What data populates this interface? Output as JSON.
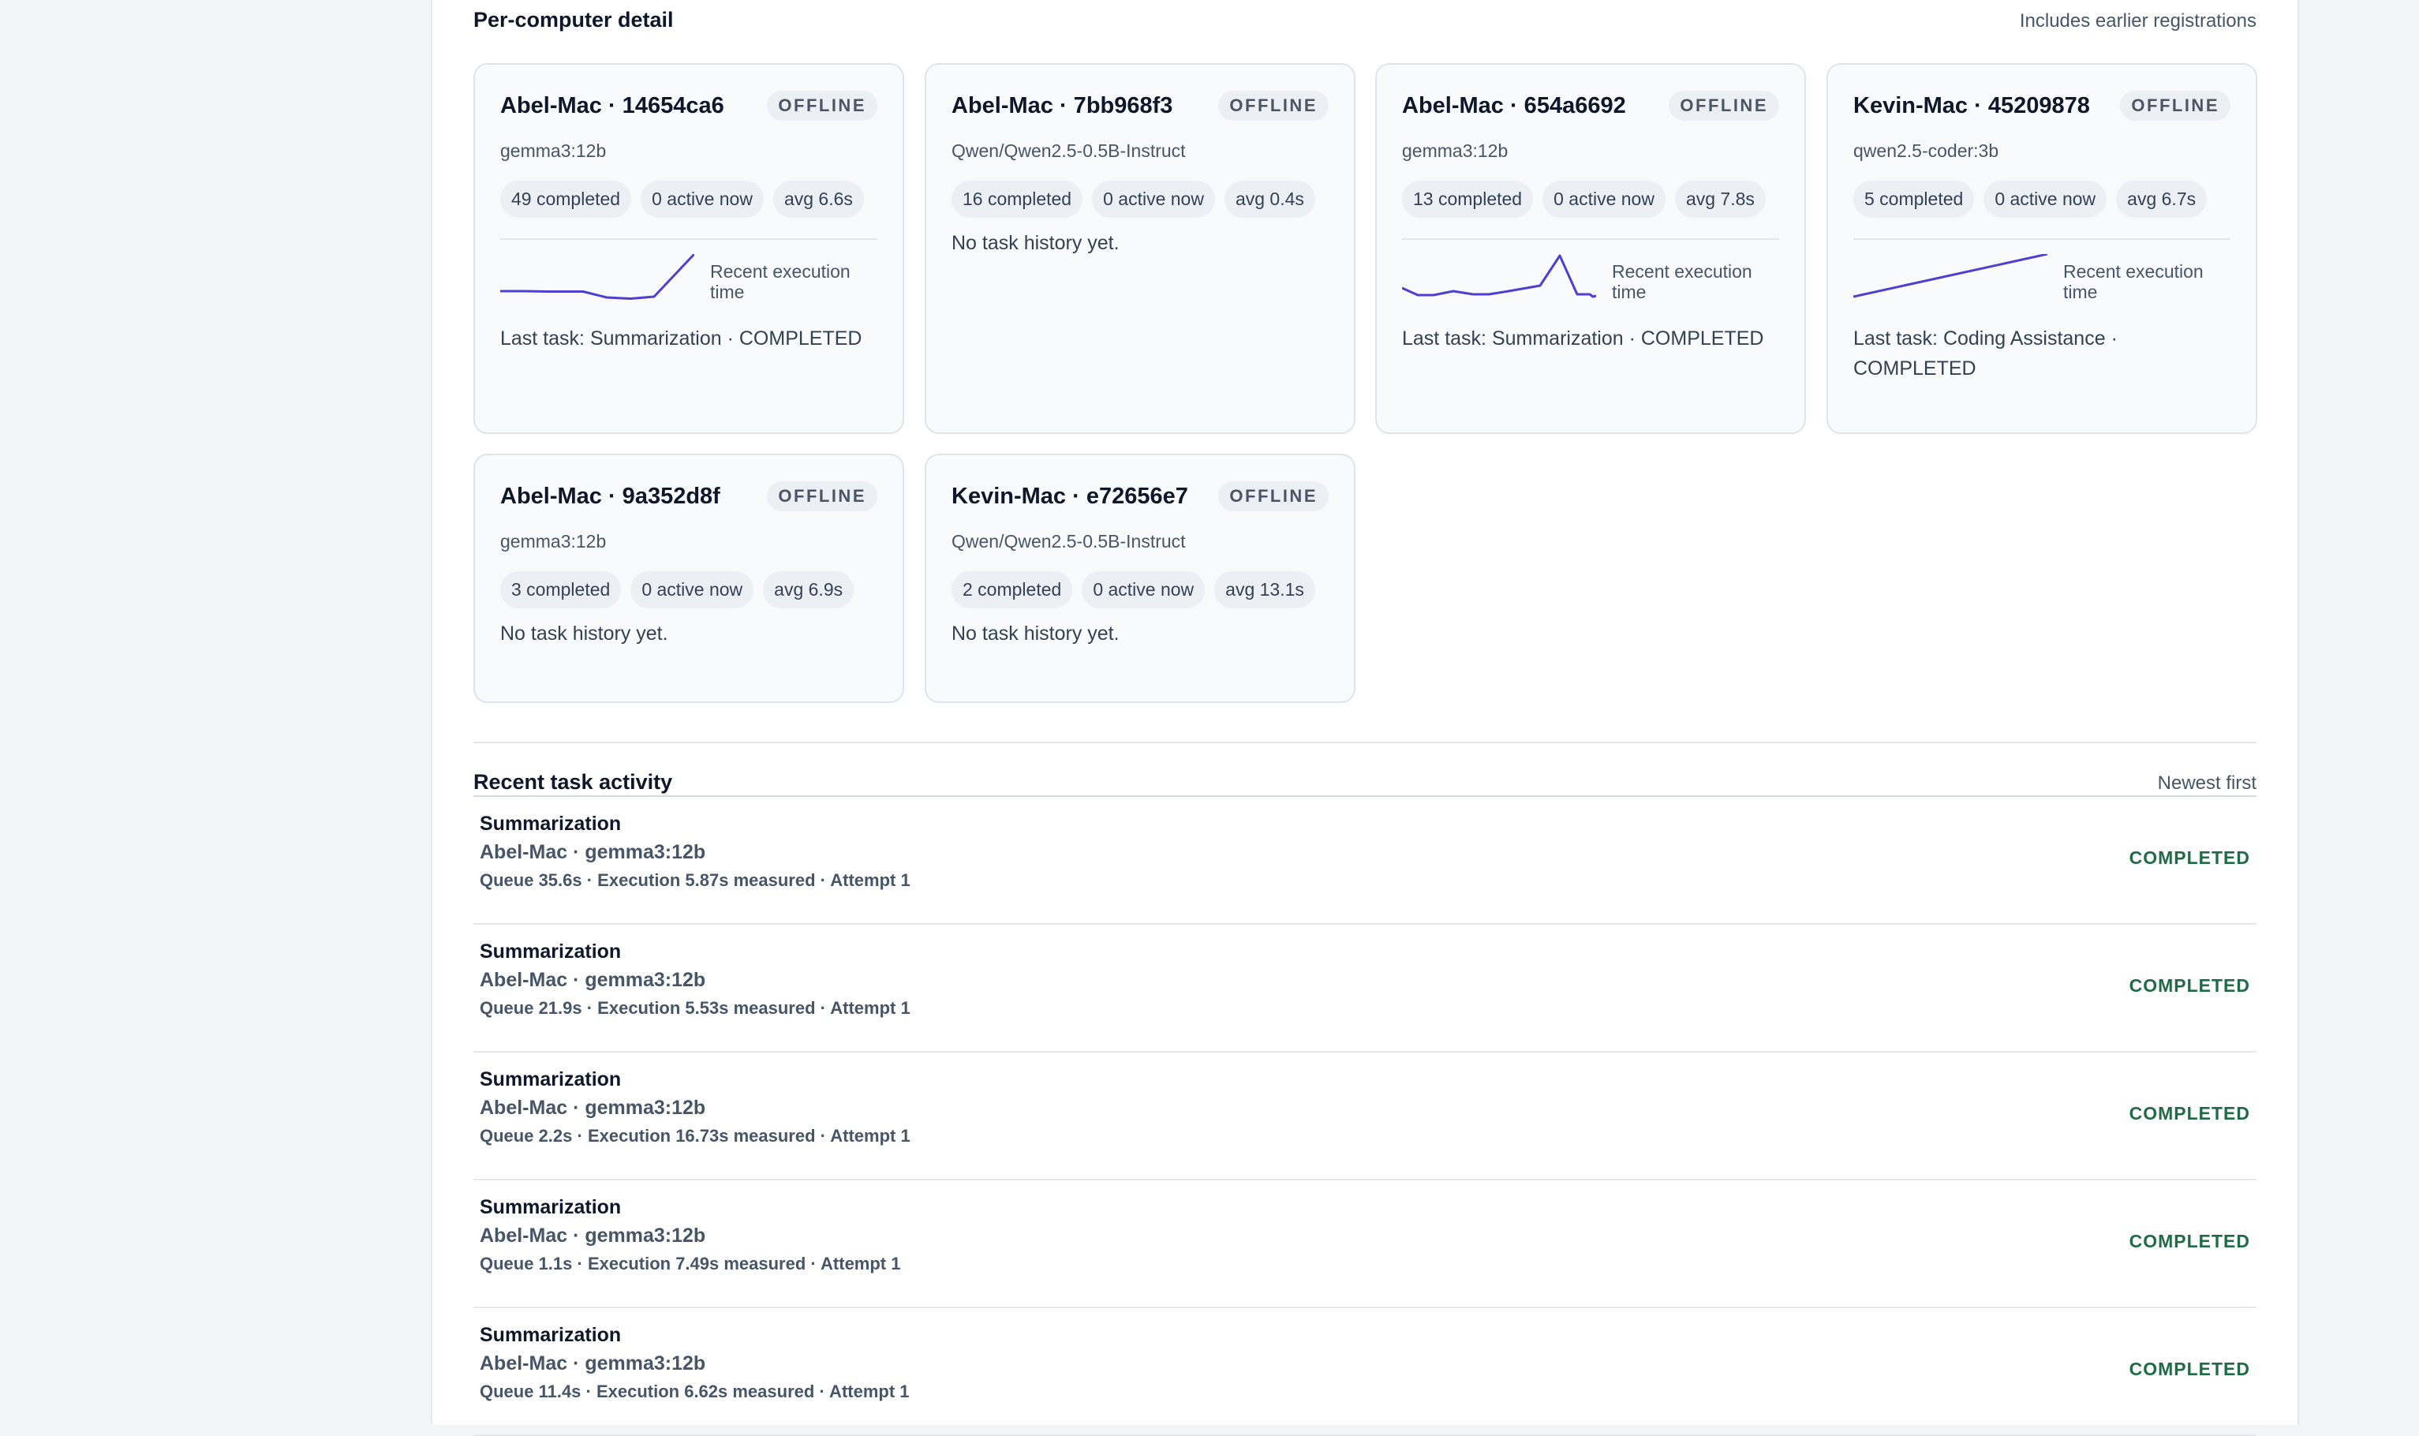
{
  "per_computer": {
    "title": "Per-computer detail",
    "note": "Includes earlier registrations",
    "cards": [
      {
        "name": "Abel-Mac · 14654ca6",
        "status": "OFFLINE",
        "model": "gemma3:12b",
        "completed": "49 completed",
        "active": "0 active now",
        "avg": "avg 6.6s",
        "spark_label": "Recent execution time",
        "last_task": "Last task: Summarization · COMPLETED"
      },
      {
        "name": "Abel-Mac · 7bb968f3",
        "status": "OFFLINE",
        "model": "Qwen/Qwen2.5-0.5B-Instruct",
        "completed": "16 completed",
        "active": "0 active now",
        "avg": "avg 0.4s",
        "no_history": "No task history yet."
      },
      {
        "name": "Abel-Mac · 654a6692",
        "status": "OFFLINE",
        "model": "gemma3:12b",
        "completed": "13 completed",
        "active": "0 active now",
        "avg": "avg 7.8s",
        "spark_label": "Recent execution time",
        "last_task": "Last task: Summarization · COMPLETED"
      },
      {
        "name": "Kevin-Mac · 45209878",
        "status": "OFFLINE",
        "model": "qwen2.5-coder:3b",
        "completed": "5 completed",
        "active": "0 active now",
        "avg": "avg 6.7s",
        "spark_label": "Recent execution time",
        "last_task": "Last task: Coding Assistance · COMPLETED"
      },
      {
        "name": "Abel-Mac · 9a352d8f",
        "status": "OFFLINE",
        "model": "gemma3:12b",
        "completed": "3 completed",
        "active": "0 active now",
        "avg": "avg 6.9s",
        "no_history": "No task history yet."
      },
      {
        "name": "Kevin-Mac · e72656e7",
        "status": "OFFLINE",
        "model": "Qwen/Qwen2.5-0.5B-Instruct",
        "completed": "2 completed",
        "active": "0 active now",
        "avg": "avg 13.1s",
        "no_history": "No task history yet."
      }
    ]
  },
  "activity": {
    "title": "Recent task activity",
    "note": "Newest first",
    "rows": [
      {
        "task": "Summarization",
        "machine": "Abel-Mac · gemma3:12b",
        "meta": "Queue 35.6s · Execution 5.87s measured · Attempt 1",
        "status": "COMPLETED"
      },
      {
        "task": "Summarization",
        "machine": "Abel-Mac · gemma3:12b",
        "meta": "Queue 21.9s · Execution 5.53s measured · Attempt 1",
        "status": "COMPLETED"
      },
      {
        "task": "Summarization",
        "machine": "Abel-Mac · gemma3:12b",
        "meta": "Queue 2.2s · Execution 16.73s measured · Attempt 1",
        "status": "COMPLETED"
      },
      {
        "task": "Summarization",
        "machine": "Abel-Mac · gemma3:12b",
        "meta": "Queue 1.1s · Execution 7.49s measured · Attempt 1",
        "status": "COMPLETED"
      },
      {
        "task": "Summarization",
        "machine": "Abel-Mac · gemma3:12b",
        "meta": "Queue 11.4s · Execution 6.62s measured · Attempt 1",
        "status": "COMPLETED"
      }
    ]
  },
  "colors": {
    "sparkline": "#4f3fd1",
    "completed": "#1f6b46"
  }
}
